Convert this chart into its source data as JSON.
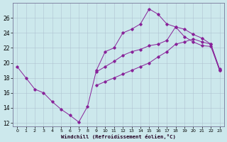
{
  "xlabel": "Windchill (Refroidissement éolien,°C)",
  "bg_color": "#cce8ec",
  "grid_color": "#aabbcc",
  "line_color": "#882299",
  "ylim": [
    11.5,
    28.0
  ],
  "xlim": [
    -0.5,
    23.5
  ],
  "yticks": [
    12,
    14,
    16,
    18,
    20,
    22,
    24,
    26
  ],
  "xticks": [
    0,
    1,
    2,
    3,
    4,
    5,
    6,
    7,
    8,
    9,
    10,
    11,
    12,
    13,
    14,
    15,
    16,
    17,
    18,
    19,
    20,
    21,
    22,
    23
  ],
  "line1_x": [
    0,
    1,
    2,
    3,
    4,
    5,
    6,
    7,
    8,
    9,
    10,
    11,
    12,
    13,
    14,
    15,
    16,
    17,
    18,
    19,
    20,
    21,
    22,
    23
  ],
  "line1_y": [
    19.5,
    18.0,
    16.5,
    16.0,
    14.8,
    13.8,
    13.0,
    12.1,
    14.2,
    19.0,
    21.5,
    22.0,
    24.0,
    24.5,
    25.2,
    27.2,
    26.5,
    25.2,
    24.8,
    23.5,
    22.8,
    22.3,
    22.2,
    19.0
  ],
  "line2_x": [
    9,
    10,
    11,
    12,
    13,
    14,
    15,
    16,
    17,
    18,
    19,
    20,
    21,
    22,
    23
  ],
  "line2_y": [
    18.8,
    19.5,
    20.2,
    21.0,
    21.5,
    21.8,
    22.3,
    22.5,
    23.0,
    24.8,
    24.5,
    23.8,
    23.3,
    22.5,
    19.0
  ],
  "line3_x": [
    9,
    10,
    11,
    12,
    13,
    14,
    15,
    16,
    17,
    18,
    19,
    20,
    21,
    22,
    23
  ],
  "line3_y": [
    17.0,
    17.5,
    18.0,
    18.5,
    19.0,
    19.5,
    20.0,
    20.8,
    21.5,
    22.5,
    22.8,
    23.2,
    22.8,
    22.5,
    19.2
  ]
}
